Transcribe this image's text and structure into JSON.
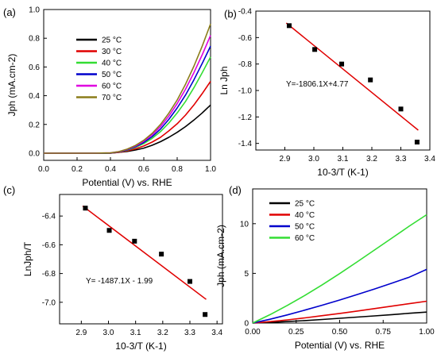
{
  "chart_data": [
    {
      "id": "a",
      "type": "line",
      "panel_label": "(a)",
      "xlabel": "Potential (V) vs. RHE",
      "ylabel": "Jph (mA.cm-2)",
      "xlim": [
        0.0,
        1.0
      ],
      "ylim": [
        -0.05,
        1.0
      ],
      "xticks": [
        "0.0",
        "0.2",
        "0.4",
        "0.6",
        "0.8",
        "1.0"
      ],
      "yticks": [
        "0.0",
        "0.2",
        "0.4",
        "0.6",
        "0.8",
        "1.0"
      ],
      "legend_position": "top-center",
      "x": [
        0.0,
        0.1,
        0.2,
        0.3,
        0.4,
        0.45,
        0.5,
        0.55,
        0.6,
        0.65,
        0.7,
        0.75,
        0.8,
        0.85,
        0.9,
        0.95,
        1.0
      ],
      "series": [
        {
          "name": "25 °C",
          "color": "#000000",
          "values": [
            0.0,
            0.0,
            0.0,
            0.0,
            0.0,
            0.005,
            0.012,
            0.022,
            0.035,
            0.055,
            0.08,
            0.11,
            0.145,
            0.185,
            0.23,
            0.28,
            0.335
          ]
        },
        {
          "name": "30 °C",
          "color": "#e00000",
          "values": [
            0.0,
            0.0,
            0.0,
            0.0,
            0.0,
            0.006,
            0.016,
            0.03,
            0.05,
            0.077,
            0.11,
            0.155,
            0.205,
            0.265,
            0.335,
            0.415,
            0.5
          ]
        },
        {
          "name": "40 °C",
          "color": "#33dd33",
          "values": [
            0.0,
            0.0,
            0.0,
            0.0,
            0.001,
            0.008,
            0.02,
            0.04,
            0.067,
            0.103,
            0.15,
            0.21,
            0.28,
            0.36,
            0.455,
            0.56,
            0.67
          ]
        },
        {
          "name": "50 °C",
          "color": "#0000cc",
          "values": [
            0.0,
            0.0,
            0.0,
            0.0,
            0.001,
            0.009,
            0.023,
            0.045,
            0.075,
            0.115,
            0.168,
            0.235,
            0.315,
            0.405,
            0.51,
            0.625,
            0.745
          ]
        },
        {
          "name": "60 °C",
          "color": "#e000e0",
          "values": [
            0.0,
            0.0,
            0.0,
            0.0,
            0.002,
            0.01,
            0.026,
            0.05,
            0.083,
            0.128,
            0.185,
            0.258,
            0.345,
            0.445,
            0.56,
            0.685,
            0.82
          ]
        },
        {
          "name": "70 °C",
          "color": "#8b7d1a",
          "values": [
            0.0,
            0.0,
            0.0,
            0.0,
            0.002,
            0.011,
            0.028,
            0.054,
            0.09,
            0.138,
            0.2,
            0.278,
            0.37,
            0.48,
            0.605,
            0.745,
            0.9
          ]
        }
      ]
    },
    {
      "id": "b",
      "type": "scatter",
      "panel_label": "(b)",
      "xlabel": "10-3/T (K-1)",
      "ylabel": "Ln Jph",
      "xlim": [
        2.8,
        3.4
      ],
      "ylim": [
        -1.45,
        -0.4
      ],
      "xticks": [
        "2.9",
        "3.0",
        "3.1",
        "3.2",
        "3.3",
        "3.4"
      ],
      "yticks": [
        "-0.4",
        "-0.6",
        "-0.8",
        "-1.0",
        "-1.2",
        "-1.4"
      ],
      "points": {
        "x": [
          2.915,
          3.003,
          3.096,
          3.195,
          3.3,
          3.356
        ],
        "y": [
          -0.51,
          -0.69,
          -0.8,
          -0.92,
          -1.14,
          -1.39
        ]
      },
      "fit": {
        "x": [
          2.905,
          3.36
        ],
        "y": [
          -0.49,
          -1.3
        ],
        "color": "#e00000"
      },
      "annotation": "Y=-1806.1X+4.77"
    },
    {
      "id": "c",
      "type": "scatter",
      "panel_label": "(c)",
      "xlabel": "10-3/T (K-1)",
      "ylabel": "LnJph/T",
      "xlim": [
        2.82,
        3.42
      ],
      "ylim": [
        -7.15,
        -6.25
      ],
      "xticks": [
        "2.9",
        "3.0",
        "3.1",
        "3.2",
        "3.3",
        "3.4"
      ],
      "yticks": [
        "-6.4",
        "-6.6",
        "-6.8",
        "-7.0"
      ],
      "points": {
        "x": [
          2.915,
          3.003,
          3.096,
          3.195,
          3.3,
          3.356
        ],
        "y": [
          -6.345,
          -6.5,
          -6.575,
          -6.665,
          -6.855,
          -7.085
        ]
      },
      "fit": {
        "x": [
          2.905,
          3.36
        ],
        "y": [
          -6.33,
          -6.98
        ],
        "color": "#e00000"
      },
      "annotation": "Y= -1487.1X - 1.99"
    },
    {
      "id": "d",
      "type": "line",
      "panel_label": "(d)",
      "xlabel": "Potential (V) vs. RHE",
      "ylabel": "Jph (mA.cm-2)",
      "xlim": [
        0.0,
        1.0
      ],
      "ylim": [
        0,
        13.5
      ],
      "xticks": [
        "0.00",
        "0.25",
        "0.50",
        "0.75",
        "1.00"
      ],
      "yticks": [
        "0",
        "5",
        "10"
      ],
      "legend_position": "top-center",
      "x": [
        0.0,
        0.1,
        0.2,
        0.3,
        0.4,
        0.5,
        0.6,
        0.7,
        0.8,
        0.9,
        1.0
      ],
      "series": [
        {
          "name": "25 °C",
          "color": "#000000",
          "values": [
            0.0,
            0.06,
            0.15,
            0.25,
            0.36,
            0.48,
            0.6,
            0.72,
            0.85,
            0.98,
            1.1
          ]
        },
        {
          "name": "40 °C",
          "color": "#e00000",
          "values": [
            0.0,
            0.14,
            0.32,
            0.52,
            0.74,
            0.97,
            1.21,
            1.45,
            1.7,
            1.95,
            2.2
          ]
        },
        {
          "name": "50 °C",
          "color": "#0000cc",
          "values": [
            0.0,
            0.38,
            0.82,
            1.3,
            1.8,
            2.32,
            2.87,
            3.43,
            4.02,
            4.62,
            5.4
          ]
        },
        {
          "name": "60 °C",
          "color": "#33dd33",
          "values": [
            0.0,
            0.85,
            1.78,
            2.78,
            3.85,
            4.98,
            6.15,
            7.35,
            8.55,
            9.75,
            10.9
          ]
        }
      ]
    }
  ]
}
